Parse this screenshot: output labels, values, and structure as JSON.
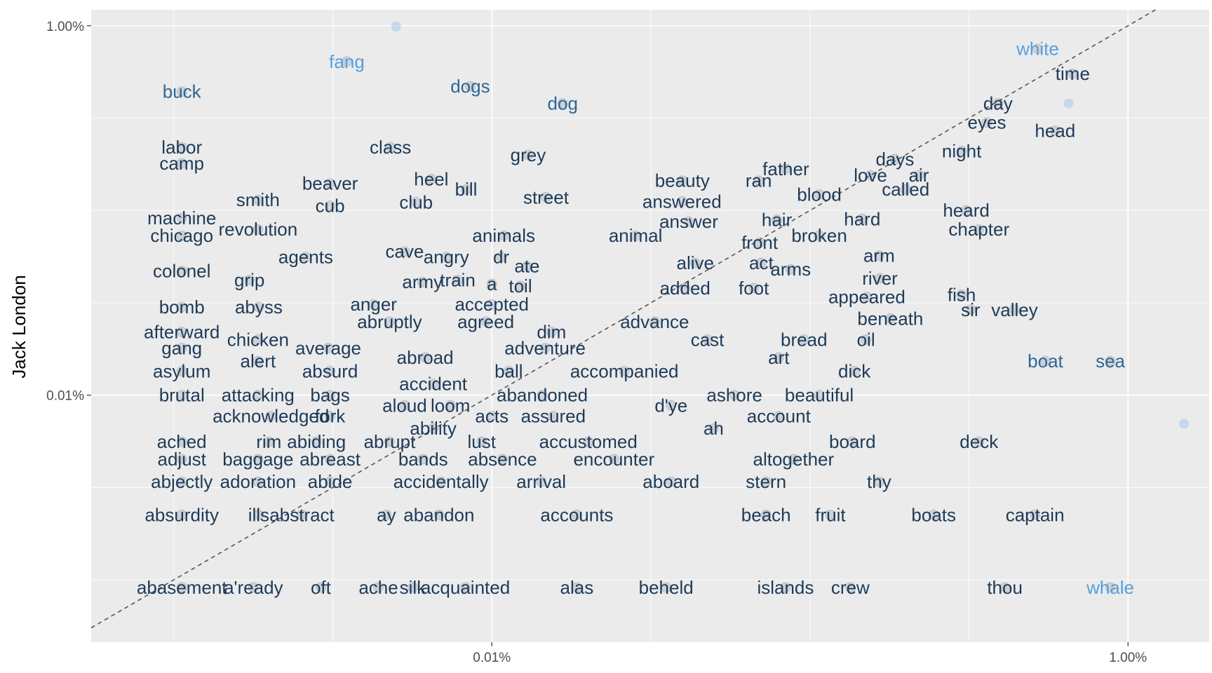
{
  "chart_data": {
    "type": "scatter",
    "title": "",
    "xlabel": "",
    "ylabel": "Jack London",
    "x_scale": "log10",
    "y_scale": "log10",
    "xlim": [
      5.5e-06,
      0.018
    ],
    "ylim": [
      4.6e-06,
      0.0122
    ],
    "x_ticks": [
      {
        "value": 0.0001,
        "label": "0.01%"
      },
      {
        "value": 0.01,
        "label": "1.00%"
      }
    ],
    "y_ticks": [
      {
        "value": 0.0001,
        "label": "0.01%"
      },
      {
        "value": 0.01,
        "label": "1.00%"
      }
    ],
    "grid": true,
    "reference_line": {
      "slope": 1,
      "intercept": 0,
      "style": "dashed"
    },
    "point_color": "#1f3f5f",
    "highlight_points": [
      {
        "x": 5e-05,
        "y": 0.0099
      },
      {
        "x": 0.015,
        "y": 7e-05
      },
      {
        "x": 0.0065,
        "y": 0.0038
      }
    ],
    "labels": [
      {
        "word": "fang",
        "x": 3.5e-05,
        "y": 0.0064,
        "color": "#56a0dc"
      },
      {
        "word": "white",
        "x": 0.0052,
        "y": 0.0075,
        "color": "#56a0dc"
      },
      {
        "word": "whale",
        "x": 0.0088,
        "y": 9.1e-06,
        "color": "#56a0dc"
      },
      {
        "word": "buck",
        "x": 1.06e-05,
        "y": 0.0044,
        "color": "#2f6796"
      },
      {
        "word": "dogs",
        "x": 8.55e-05,
        "y": 0.0047,
        "color": "#2f6796"
      },
      {
        "word": "dog",
        "x": 0.000167,
        "y": 0.0038,
        "color": "#2f6796"
      },
      {
        "word": "time",
        "x": 0.0067,
        "y": 0.0055,
        "color": "#1d3b58"
      },
      {
        "word": "day",
        "x": 0.0039,
        "y": 0.0038,
        "color": "#1d3b58"
      },
      {
        "word": "eyes",
        "x": 0.0036,
        "y": 0.003,
        "color": "#1d3b58"
      },
      {
        "word": "head",
        "x": 0.0059,
        "y": 0.0027,
        "color": "#1d3b58"
      },
      {
        "word": "labor",
        "x": 1.06e-05,
        "y": 0.0022,
        "color": "#1d3b58"
      },
      {
        "word": "camp",
        "x": 1.06e-05,
        "y": 0.0018,
        "color": "#1d3b58"
      },
      {
        "word": "class",
        "x": 4.8e-05,
        "y": 0.0022,
        "color": "#1d3b58"
      },
      {
        "word": "grey",
        "x": 0.00013,
        "y": 0.002,
        "color": "#1d3b58"
      },
      {
        "word": "night",
        "x": 0.003,
        "y": 0.0021,
        "color": "#1d3b58"
      },
      {
        "word": "days",
        "x": 0.00185,
        "y": 0.0019,
        "color": "#1d3b58"
      },
      {
        "word": "father",
        "x": 0.00084,
        "y": 0.00168,
        "color": "#1d3b58"
      },
      {
        "word": "love",
        "x": 0.00155,
        "y": 0.00155,
        "color": "#1d3b58"
      },
      {
        "word": "air",
        "x": 0.0022,
        "y": 0.00155,
        "color": "#1d3b58"
      },
      {
        "word": "beaver",
        "x": 3.1e-05,
        "y": 0.0014,
        "color": "#1d3b58"
      },
      {
        "word": "heel",
        "x": 6.45e-05,
        "y": 0.00148,
        "color": "#1d3b58"
      },
      {
        "word": "bill",
        "x": 8.3e-05,
        "y": 0.0013,
        "color": "#1d3b58"
      },
      {
        "word": "beauty",
        "x": 0.000397,
        "y": 0.00145,
        "color": "#1d3b58"
      },
      {
        "word": "ran",
        "x": 0.00069,
        "y": 0.00145,
        "color": "#1d3b58"
      },
      {
        "word": "called",
        "x": 0.002,
        "y": 0.0013,
        "color": "#1d3b58"
      },
      {
        "word": "smith",
        "x": 1.84e-05,
        "y": 0.00114,
        "color": "#1d3b58"
      },
      {
        "word": "cub",
        "x": 3.1e-05,
        "y": 0.00106,
        "color": "#1d3b58"
      },
      {
        "word": "club",
        "x": 5.78e-05,
        "y": 0.00111,
        "color": "#1d3b58"
      },
      {
        "word": "street",
        "x": 0.000148,
        "y": 0.00118,
        "color": "#1d3b58"
      },
      {
        "word": "answered",
        "x": 0.000396,
        "y": 0.00112,
        "color": "#1d3b58"
      },
      {
        "word": "blood",
        "x": 0.00107,
        "y": 0.00122,
        "color": "#1d3b58"
      },
      {
        "word": "heard",
        "x": 0.0031,
        "y": 0.001,
        "color": "#1d3b58"
      },
      {
        "word": "machine",
        "x": 1.06e-05,
        "y": 0.00091,
        "color": "#1d3b58"
      },
      {
        "word": "chicago",
        "x": 1.06e-05,
        "y": 0.00073,
        "color": "#1d3b58"
      },
      {
        "word": "revolution",
        "x": 1.84e-05,
        "y": 0.00079,
        "color": "#1d3b58"
      },
      {
        "word": "answer",
        "x": 0.000416,
        "y": 0.00087,
        "color": "#1d3b58"
      },
      {
        "word": "hair",
        "x": 0.000787,
        "y": 0.00089,
        "color": "#1d3b58"
      },
      {
        "word": "hard",
        "x": 0.00146,
        "y": 0.0009,
        "color": "#1d3b58"
      },
      {
        "word": "chapter",
        "x": 0.0034,
        "y": 0.00079,
        "color": "#1d3b58"
      },
      {
        "word": "animals",
        "x": 0.000109,
        "y": 0.00073,
        "color": "#1d3b58"
      },
      {
        "word": "animal",
        "x": 0.000283,
        "y": 0.00073,
        "color": "#1d3b58"
      },
      {
        "word": "front",
        "x": 0.000695,
        "y": 0.00067,
        "color": "#1d3b58"
      },
      {
        "word": "broken",
        "x": 0.00107,
        "y": 0.00073,
        "color": "#1d3b58"
      },
      {
        "word": "colonel",
        "x": 1.06e-05,
        "y": 0.00047,
        "color": "#1d3b58"
      },
      {
        "word": "agents",
        "x": 2.6e-05,
        "y": 0.00056,
        "color": "#1d3b58"
      },
      {
        "word": "cave",
        "x": 5.32e-05,
        "y": 0.0006,
        "color": "#1d3b58"
      },
      {
        "word": "angry",
        "x": 7.19e-05,
        "y": 0.00056,
        "color": "#1d3b58"
      },
      {
        "word": "dr",
        "x": 0.000107,
        "y": 0.00056,
        "color": "#1d3b58"
      },
      {
        "word": "ate",
        "x": 0.000129,
        "y": 0.0005,
        "color": "#1d3b58"
      },
      {
        "word": "alive",
        "x": 0.000436,
        "y": 0.00052,
        "color": "#1d3b58"
      },
      {
        "word": "act",
        "x": 0.000703,
        "y": 0.00052,
        "color": "#1d3b58"
      },
      {
        "word": "arms",
        "x": 0.00087,
        "y": 0.00048,
        "color": "#1d3b58"
      },
      {
        "word": "arm",
        "x": 0.00165,
        "y": 0.00057,
        "color": "#1d3b58"
      },
      {
        "word": "grip",
        "x": 1.73e-05,
        "y": 0.00042,
        "color": "#1d3b58"
      },
      {
        "word": "army",
        "x": 6.05e-05,
        "y": 0.00041,
        "color": "#1d3b58"
      },
      {
        "word": "train",
        "x": 7.81e-05,
        "y": 0.00042,
        "color": "#1d3b58"
      },
      {
        "word": "a",
        "x": 0.0001,
        "y": 0.0004,
        "color": "#1d3b58"
      },
      {
        "word": "toil",
        "x": 0.000123,
        "y": 0.00039,
        "color": "#1d3b58"
      },
      {
        "word": "added",
        "x": 0.000405,
        "y": 0.00038,
        "color": "#1d3b58"
      },
      {
        "word": "foot",
        "x": 0.000666,
        "y": 0.00038,
        "color": "#1d3b58"
      },
      {
        "word": "river",
        "x": 0.00166,
        "y": 0.00043,
        "color": "#1d3b58"
      },
      {
        "word": "appeared",
        "x": 0.00151,
        "y": 0.00034,
        "color": "#1d3b58"
      },
      {
        "word": "fish",
        "x": 0.003,
        "y": 0.00035,
        "color": "#1d3b58"
      },
      {
        "word": "bomb",
        "x": 1.06e-05,
        "y": 0.0003,
        "color": "#1d3b58"
      },
      {
        "word": "abyss",
        "x": 1.85e-05,
        "y": 0.0003,
        "color": "#1d3b58"
      },
      {
        "word": "anger",
        "x": 4.25e-05,
        "y": 0.00031,
        "color": "#1d3b58"
      },
      {
        "word": "accepted",
        "x": 0.0001,
        "y": 0.00031,
        "color": "#1d3b58"
      },
      {
        "word": "sir",
        "x": 0.0032,
        "y": 0.00029,
        "color": "#1d3b58"
      },
      {
        "word": "valley",
        "x": 0.0044,
        "y": 0.00029,
        "color": "#1d3b58"
      },
      {
        "word": "afterward",
        "x": 1.06e-05,
        "y": 0.00022,
        "color": "#1d3b58"
      },
      {
        "word": "abruptly",
        "x": 4.77e-05,
        "y": 0.00025,
        "color": "#1d3b58"
      },
      {
        "word": "agreed",
        "x": 9.57e-05,
        "y": 0.00025,
        "color": "#1d3b58"
      },
      {
        "word": "advance",
        "x": 0.000325,
        "y": 0.00025,
        "color": "#1d3b58"
      },
      {
        "word": "beneath",
        "x": 0.00179,
        "y": 0.00026,
        "color": "#1d3b58"
      },
      {
        "word": "dim",
        "x": 0.000154,
        "y": 0.00022,
        "color": "#1d3b58"
      },
      {
        "word": "bread",
        "x": 0.000958,
        "y": 0.0002,
        "color": "#1d3b58"
      },
      {
        "word": "oil",
        "x": 0.0015,
        "y": 0.0002,
        "color": "#1d3b58"
      },
      {
        "word": "gang",
        "x": 1.06e-05,
        "y": 0.00018,
        "color": "#1d3b58"
      },
      {
        "word": "chicken",
        "x": 1.84e-05,
        "y": 0.0002,
        "color": "#1d3b58"
      },
      {
        "word": "average",
        "x": 3.06e-05,
        "y": 0.00018,
        "color": "#1d3b58"
      },
      {
        "word": "adventure",
        "x": 0.000147,
        "y": 0.00018,
        "color": "#1d3b58"
      },
      {
        "word": "cast",
        "x": 0.000476,
        "y": 0.0002,
        "color": "#1d3b58"
      },
      {
        "word": "abroad",
        "x": 6.17e-05,
        "y": 0.00016,
        "color": "#1d3b58"
      },
      {
        "word": "art",
        "x": 0.000798,
        "y": 0.00016,
        "color": "#1d3b58"
      },
      {
        "word": "asylum",
        "x": 1.06e-05,
        "y": 0.000135,
        "color": "#1d3b58"
      },
      {
        "word": "alert",
        "x": 1.84e-05,
        "y": 0.000153,
        "color": "#1d3b58"
      },
      {
        "word": "absurd",
        "x": 3.1e-05,
        "y": 0.000135,
        "color": "#1d3b58"
      },
      {
        "word": "ball",
        "x": 0.000113,
        "y": 0.000135,
        "color": "#1d3b58"
      },
      {
        "word": "accompanied",
        "x": 0.000261,
        "y": 0.000135,
        "color": "#1d3b58"
      },
      {
        "word": "dick",
        "x": 0.00138,
        "y": 0.000135,
        "color": "#1d3b58"
      },
      {
        "word": "boat",
        "x": 0.0055,
        "y": 0.000153,
        "color": "#2f6796"
      },
      {
        "word": "sea",
        "x": 0.0088,
        "y": 0.000153,
        "color": "#2f6796"
      },
      {
        "word": "brutal",
        "x": 1.06e-05,
        "y": 0.0001,
        "color": "#1d3b58"
      },
      {
        "word": "attacking",
        "x": 1.84e-05,
        "y": 0.0001,
        "color": "#1d3b58"
      },
      {
        "word": "accident",
        "x": 6.54e-05,
        "y": 0.000115,
        "color": "#1d3b58"
      },
      {
        "word": "bags",
        "x": 3.1e-05,
        "y": 0.0001,
        "color": "#1d3b58"
      },
      {
        "word": "abandoned",
        "x": 0.000144,
        "y": 0.0001,
        "color": "#1d3b58"
      },
      {
        "word": "ashore",
        "x": 0.000579,
        "y": 0.0001,
        "color": "#1d3b58"
      },
      {
        "word": "beautiful",
        "x": 0.00107,
        "y": 0.0001,
        "color": "#1d3b58"
      },
      {
        "word": "aloud",
        "x": 5.32e-05,
        "y": 8.8e-05,
        "color": "#1d3b58"
      },
      {
        "word": "loom",
        "x": 7.41e-05,
        "y": 8.8e-05,
        "color": "#1d3b58"
      },
      {
        "word": "d'ye",
        "x": 0.000366,
        "y": 8.8e-05,
        "color": "#1d3b58"
      },
      {
        "word": "acknowledged",
        "x": 2.02e-05,
        "y": 7.7e-05,
        "color": "#1d3b58"
      },
      {
        "word": "fork",
        "x": 3.1e-05,
        "y": 7.7e-05,
        "color": "#1d3b58"
      },
      {
        "word": "acts",
        "x": 0.0001,
        "y": 7.7e-05,
        "color": "#1d3b58"
      },
      {
        "word": "assured",
        "x": 0.000156,
        "y": 7.7e-05,
        "color": "#1d3b58"
      },
      {
        "word": "account",
        "x": 0.000798,
        "y": 7.7e-05,
        "color": "#1d3b58"
      },
      {
        "word": "ability",
        "x": 6.54e-05,
        "y": 6.6e-05,
        "color": "#1d3b58"
      },
      {
        "word": "ah",
        "x": 0.000498,
        "y": 6.6e-05,
        "color": "#1d3b58"
      },
      {
        "word": "ached",
        "x": 1.06e-05,
        "y": 5.6e-05,
        "color": "#1d3b58"
      },
      {
        "word": "rim",
        "x": 1.99e-05,
        "y": 5.6e-05,
        "color": "#1d3b58"
      },
      {
        "word": "abiding",
        "x": 2.81e-05,
        "y": 5.6e-05,
        "color": "#1d3b58"
      },
      {
        "word": "abrupt",
        "x": 4.77e-05,
        "y": 5.6e-05,
        "color": "#1d3b58"
      },
      {
        "word": "lust",
        "x": 9.29e-05,
        "y": 5.6e-05,
        "color": "#1d3b58"
      },
      {
        "word": "accustomed",
        "x": 0.000201,
        "y": 5.6e-05,
        "color": "#1d3b58"
      },
      {
        "word": "board",
        "x": 0.00136,
        "y": 5.6e-05,
        "color": "#1d3b58"
      },
      {
        "word": "deck",
        "x": 0.0034,
        "y": 5.6e-05,
        "color": "#1d3b58"
      },
      {
        "word": "adjust",
        "x": 1.06e-05,
        "y": 4.5e-05,
        "color": "#1d3b58"
      },
      {
        "word": "baggage",
        "x": 1.84e-05,
        "y": 4.5e-05,
        "color": "#1d3b58"
      },
      {
        "word": "abreast",
        "x": 3.1e-05,
        "y": 4.5e-05,
        "color": "#1d3b58"
      },
      {
        "word": "bands",
        "x": 6.08e-05,
        "y": 4.5e-05,
        "color": "#1d3b58"
      },
      {
        "word": "absence",
        "x": 0.000108,
        "y": 4.5e-05,
        "color": "#1d3b58"
      },
      {
        "word": "encounter",
        "x": 0.000242,
        "y": 4.5e-05,
        "color": "#1d3b58"
      },
      {
        "word": "altogether",
        "x": 0.000888,
        "y": 4.5e-05,
        "color": "#1d3b58"
      },
      {
        "word": "abjectly",
        "x": 1.06e-05,
        "y": 3.4e-05,
        "color": "#1d3b58"
      },
      {
        "word": "adoration",
        "x": 1.84e-05,
        "y": 3.4e-05,
        "color": "#1d3b58"
      },
      {
        "word": "abide",
        "x": 3.1e-05,
        "y": 3.4e-05,
        "color": "#1d3b58"
      },
      {
        "word": "accidentally",
        "x": 6.92e-05,
        "y": 3.4e-05,
        "color": "#1d3b58"
      },
      {
        "word": "arrival",
        "x": 0.000143,
        "y": 3.4e-05,
        "color": "#1d3b58"
      },
      {
        "word": "aboard",
        "x": 0.000366,
        "y": 3.4e-05,
        "color": "#1d3b58"
      },
      {
        "word": "stern",
        "x": 0.000728,
        "y": 3.4e-05,
        "color": "#1d3b58"
      },
      {
        "word": "thy",
        "x": 0.00165,
        "y": 3.4e-05,
        "color": "#1d3b58"
      },
      {
        "word": "absurdity",
        "x": 1.06e-05,
        "y": 2.25e-05,
        "color": "#1d3b58"
      },
      {
        "word": "ills",
        "x": 1.85e-05,
        "y": 2.25e-05,
        "color": "#1d3b58"
      },
      {
        "word": "abstract",
        "x": 2.53e-05,
        "y": 2.25e-05,
        "color": "#1d3b58"
      },
      {
        "word": "ay",
        "x": 4.66e-05,
        "y": 2.25e-05,
        "color": "#1d3b58"
      },
      {
        "word": "abandon",
        "x": 6.82e-05,
        "y": 2.25e-05,
        "color": "#1d3b58"
      },
      {
        "word": "accounts",
        "x": 0.000185,
        "y": 2.25e-05,
        "color": "#1d3b58"
      },
      {
        "word": "beach",
        "x": 0.000728,
        "y": 2.25e-05,
        "color": "#1d3b58"
      },
      {
        "word": "fruit",
        "x": 0.00116,
        "y": 2.25e-05,
        "color": "#1d3b58"
      },
      {
        "word": "boats",
        "x": 0.00245,
        "y": 2.25e-05,
        "color": "#1d3b58"
      },
      {
        "word": "captain",
        "x": 0.0051,
        "y": 2.25e-05,
        "color": "#1d3b58"
      },
      {
        "word": "abasement",
        "x": 1.06e-05,
        "y": 9.1e-06,
        "color": "#1d3b58"
      },
      {
        "word": "a'ready",
        "x": 1.78e-05,
        "y": 9.1e-06,
        "color": "#1d3b58"
      },
      {
        "word": "oft",
        "x": 2.9e-05,
        "y": 9.1e-06,
        "color": "#1d3b58"
      },
      {
        "word": "ache",
        "x": 4.4e-05,
        "y": 9.1e-06,
        "color": "#1d3b58"
      },
      {
        "word": "silk",
        "x": 5.64e-05,
        "y": 9.1e-06,
        "color": "#1d3b58"
      },
      {
        "word": "acquainted",
        "x": 8.26e-05,
        "y": 9.1e-06,
        "color": "#1d3b58"
      },
      {
        "word": "alas",
        "x": 0.000185,
        "y": 9.1e-06,
        "color": "#1d3b58"
      },
      {
        "word": "beheld",
        "x": 0.000353,
        "y": 9.1e-06,
        "color": "#1d3b58"
      },
      {
        "word": "islands",
        "x": 0.000838,
        "y": 9.1e-06,
        "color": "#1d3b58"
      },
      {
        "word": "crew",
        "x": 0.00134,
        "y": 9.1e-06,
        "color": "#1d3b58"
      },
      {
        "word": "thou",
        "x": 0.0041,
        "y": 9.1e-06,
        "color": "#1d3b58"
      }
    ]
  }
}
